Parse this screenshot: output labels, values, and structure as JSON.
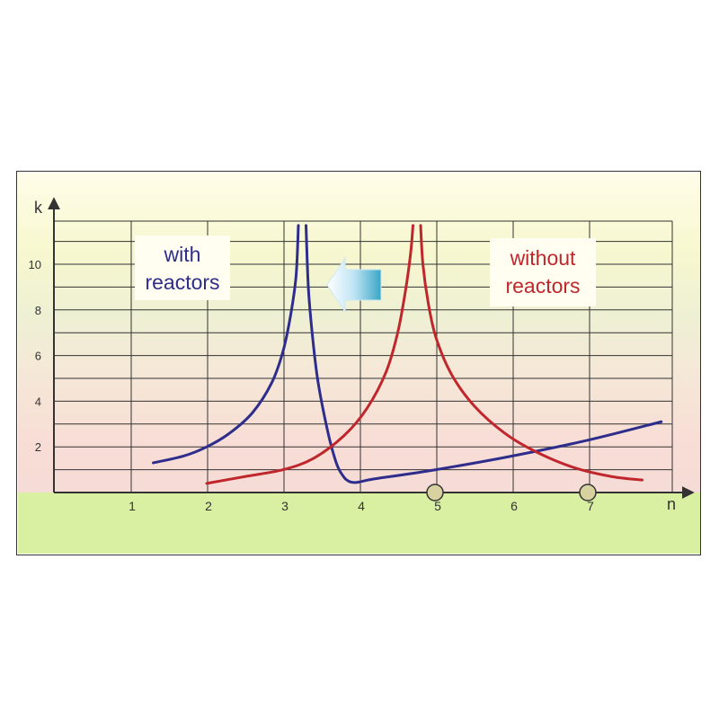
{
  "chart_data": {
    "type": "line",
    "xlabel": "n",
    "ylabel": "k",
    "xlim": [
      0,
      8.2
    ],
    "ylim": [
      0,
      11.8
    ],
    "x_ticks": [
      1,
      2,
      3,
      4,
      5,
      6,
      7
    ],
    "y_ticks": [
      2,
      4,
      6,
      8,
      10
    ],
    "grid": true,
    "annotations": {
      "with": "with\nreactors",
      "without": "without\nreactors"
    },
    "markers": [
      5,
      7
    ],
    "arrow_direction": "left",
    "series": [
      {
        "key": "with",
        "color": "#2e2d8c",
        "segments": [
          [
            [
              1.3,
              1.3
            ],
            [
              1.7,
              1.6
            ],
            [
              2.0,
              2.0
            ],
            [
              2.3,
              2.6
            ],
            [
              2.6,
              3.5
            ],
            [
              2.85,
              4.8
            ],
            [
              3.0,
              6.2
            ],
            [
              3.1,
              7.8
            ],
            [
              3.17,
              9.5
            ],
            [
              3.2,
              11.7
            ]
          ],
          [
            [
              3.3,
              11.7
            ],
            [
              3.33,
              9.0
            ],
            [
              3.38,
              7.0
            ],
            [
              3.45,
              5.0
            ],
            [
              3.55,
              3.2
            ],
            [
              3.65,
              1.8
            ],
            [
              3.75,
              0.9
            ],
            [
              3.9,
              0.45
            ],
            [
              4.2,
              0.6
            ],
            [
              5.0,
              1.0
            ],
            [
              6.0,
              1.6
            ],
            [
              7.0,
              2.3
            ],
            [
              7.95,
              3.1
            ]
          ]
        ]
      },
      {
        "key": "without",
        "color": "#c0272d",
        "segments": [
          [
            [
              2.0,
              0.4
            ],
            [
              2.5,
              0.7
            ],
            [
              3.0,
              1.0
            ],
            [
              3.4,
              1.5
            ],
            [
              3.8,
              2.5
            ],
            [
              4.1,
              3.7
            ],
            [
              4.35,
              5.3
            ],
            [
              4.5,
              7.0
            ],
            [
              4.6,
              8.8
            ],
            [
              4.67,
              10.5
            ],
            [
              4.7,
              11.7
            ]
          ],
          [
            [
              4.8,
              11.7
            ],
            [
              4.83,
              10.0
            ],
            [
              4.9,
              8.3
            ],
            [
              5.0,
              6.8
            ],
            [
              5.2,
              5.2
            ],
            [
              5.5,
              3.8
            ],
            [
              5.9,
              2.6
            ],
            [
              6.3,
              1.8
            ],
            [
              6.8,
              1.1
            ],
            [
              7.3,
              0.7
            ],
            [
              7.7,
              0.55
            ]
          ]
        ]
      }
    ]
  }
}
